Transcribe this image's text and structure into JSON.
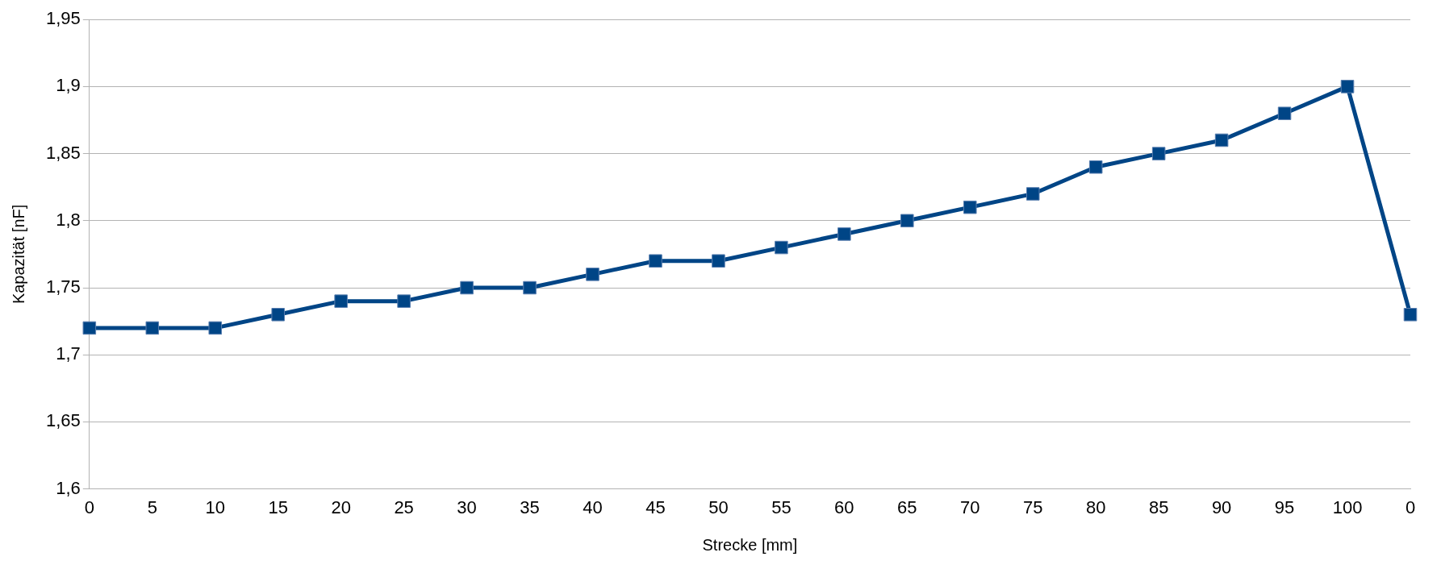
{
  "chart_data": {
    "type": "line",
    "xlabel": "Strecke [mm]",
    "ylabel": "Kapazität [nF]",
    "categories": [
      "0",
      "5",
      "10",
      "15",
      "20",
      "25",
      "30",
      "35",
      "40",
      "45",
      "50",
      "55",
      "60",
      "65",
      "70",
      "75",
      "80",
      "85",
      "90",
      "95",
      "100",
      "0"
    ],
    "series": [
      {
        "color": "#004586",
        "values": [
          1.72,
          1.72,
          1.72,
          1.73,
          1.74,
          1.74,
          1.75,
          1.75,
          1.76,
          1.77,
          1.77,
          1.78,
          1.79,
          1.8,
          1.81,
          1.82,
          1.84,
          1.85,
          1.86,
          1.88,
          1.9,
          1.73
        ]
      }
    ],
    "ylim": [
      1.6,
      1.95
    ],
    "yticks": [
      {
        "value": 1.6,
        "label": "1,6"
      },
      {
        "value": 1.65,
        "label": "1,65"
      },
      {
        "value": 1.7,
        "label": "1,7"
      },
      {
        "value": 1.75,
        "label": "1,75"
      },
      {
        "value": 1.8,
        "label": "1,8"
      },
      {
        "value": 1.85,
        "label": "1,85"
      },
      {
        "value": 1.9,
        "label": "1,9"
      },
      {
        "value": 1.95,
        "label": "1,95"
      }
    ],
    "grid": "y",
    "legend": false,
    "marker": "square",
    "line_style": "solid"
  }
}
